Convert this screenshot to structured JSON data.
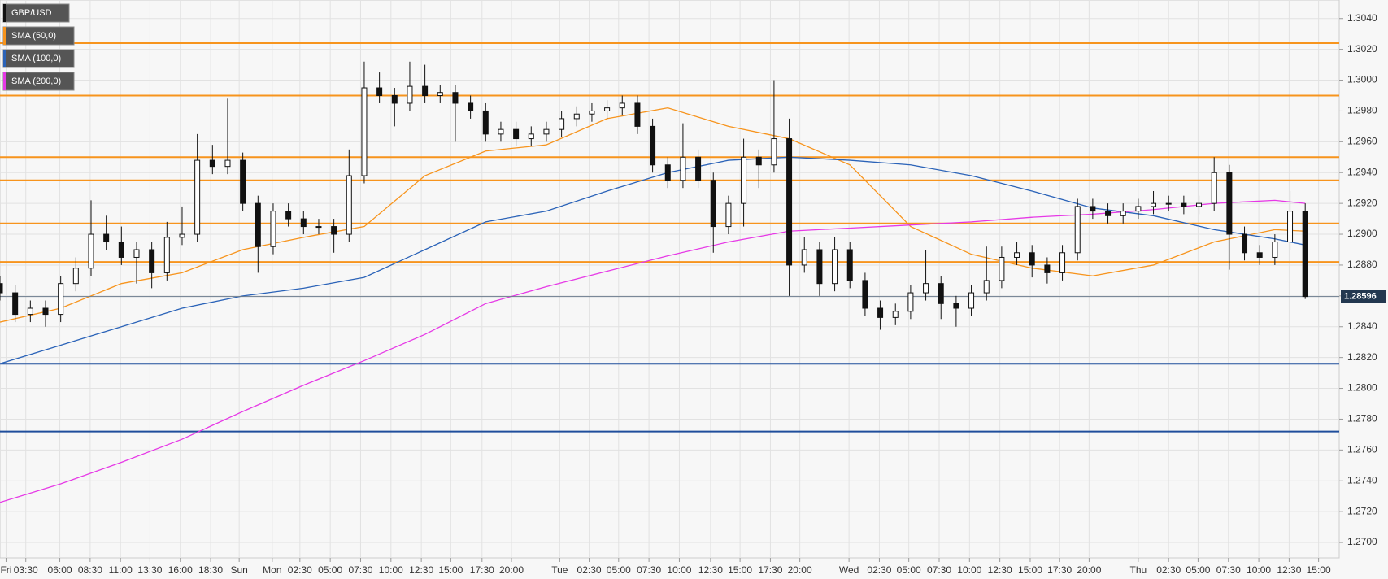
{
  "chart_data": {
    "type": "candlestick",
    "legend": [
      {
        "name": "GBP/USD",
        "color": "#111111"
      },
      {
        "name": "SMA (50,0)",
        "color": "#f7941d"
      },
      {
        "name": "SMA (100,0)",
        "color": "#2b63b8"
      },
      {
        "name": "SMA (200,0)",
        "color": "#e639e6"
      }
    ],
    "xlim": [
      0,
      44.12
    ],
    "ylim": [
      1.269,
      1.3052
    ],
    "grid": true,
    "yticks": [
      {
        "value": 1.27,
        "label": "1.2700"
      },
      {
        "value": 1.272,
        "label": "1.2720"
      },
      {
        "value": 1.274,
        "label": "1.2740"
      },
      {
        "value": 1.276,
        "label": "1.2760"
      },
      {
        "value": 1.278,
        "label": "1.2780"
      },
      {
        "value": 1.28,
        "label": "1.2800"
      },
      {
        "value": 1.282,
        "label": "1.2820"
      },
      {
        "value": 1.284,
        "label": "1.2840"
      },
      {
        "value": 1.286,
        "label": "1.2860"
      },
      {
        "value": 1.288,
        "label": "1.2880"
      },
      {
        "value": 1.29,
        "label": "1.2900"
      },
      {
        "value": 1.292,
        "label": "1.2920"
      },
      {
        "value": 1.294,
        "label": "1.2940"
      },
      {
        "value": 1.296,
        "label": "1.2960"
      },
      {
        "value": 1.298,
        "label": "1.2980"
      },
      {
        "value": 1.3,
        "label": "1.3000"
      },
      {
        "value": 1.302,
        "label": "1.3020"
      },
      {
        "value": 1.304,
        "label": "1.3040"
      }
    ],
    "xticks": [
      {
        "value": 0.2,
        "label": "Fri"
      },
      {
        "value": 0.85,
        "label": "03:30"
      },
      {
        "value": 1.97,
        "label": "06:00"
      },
      {
        "value": 2.97,
        "label": "08:30"
      },
      {
        "value": 3.97,
        "label": "11:00"
      },
      {
        "value": 4.94,
        "label": "13:30"
      },
      {
        "value": 5.94,
        "label": "16:00"
      },
      {
        "value": 6.94,
        "label": "18:30"
      },
      {
        "value": 7.88,
        "label": "Sun"
      },
      {
        "value": 8.97,
        "label": "Mon"
      },
      {
        "value": 9.88,
        "label": "02:30"
      },
      {
        "value": 10.88,
        "label": "05:00"
      },
      {
        "value": 11.88,
        "label": "07:30"
      },
      {
        "value": 12.88,
        "label": "10:00"
      },
      {
        "value": 13.88,
        "label": "12:30"
      },
      {
        "value": 14.85,
        "label": "15:00"
      },
      {
        "value": 15.88,
        "label": "17:30"
      },
      {
        "value": 16.85,
        "label": "20:00"
      },
      {
        "value": 18.44,
        "label": "Tue"
      },
      {
        "value": 19.41,
        "label": "02:30"
      },
      {
        "value": 20.38,
        "label": "05:00"
      },
      {
        "value": 21.38,
        "label": "07:30"
      },
      {
        "value": 22.38,
        "label": "10:00"
      },
      {
        "value": 23.41,
        "label": "12:30"
      },
      {
        "value": 24.38,
        "label": "15:00"
      },
      {
        "value": 25.38,
        "label": "17:30"
      },
      {
        "value": 26.35,
        "label": "20:00"
      },
      {
        "value": 27.97,
        "label": "Wed"
      },
      {
        "value": 28.97,
        "label": "02:30"
      },
      {
        "value": 29.94,
        "label": "05:00"
      },
      {
        "value": 30.94,
        "label": "07:30"
      },
      {
        "value": 31.94,
        "label": "10:00"
      },
      {
        "value": 32.94,
        "label": "12:30"
      },
      {
        "value": 33.94,
        "label": "15:00"
      },
      {
        "value": 34.91,
        "label": "17:30"
      },
      {
        "value": 35.88,
        "label": "20:00"
      },
      {
        "value": 37.5,
        "label": "Thu"
      },
      {
        "value": 38.5,
        "label": "02:30"
      },
      {
        "value": 39.47,
        "label": "05:00"
      },
      {
        "value": 40.47,
        "label": "07:30"
      },
      {
        "value": 41.47,
        "label": "10:00"
      },
      {
        "value": 42.47,
        "label": "12:30"
      },
      {
        "value": 43.44,
        "label": "15:00"
      }
    ],
    "x": [
      0,
      0.5,
      1,
      1.5,
      2,
      2.5,
      3,
      3.5,
      4,
      4.5,
      5,
      5.5,
      6,
      6.5,
      7,
      7.5,
      8,
      8.5,
      9,
      9.5,
      10,
      10.5,
      11,
      11.5,
      12,
      12.5,
      13,
      13.5,
      14,
      14.5,
      15,
      15.5,
      16,
      16.5,
      17,
      17.5,
      18,
      18.5,
      19,
      19.5,
      20,
      20.5,
      21,
      21.5,
      22,
      22.5,
      23,
      23.5,
      24,
      24.5,
      25,
      25.5,
      26,
      26.5,
      27,
      27.5,
      28,
      28.5,
      29,
      29.5,
      30,
      30.5,
      31,
      31.5,
      32,
      32.5,
      33,
      33.5,
      34,
      34.5,
      35,
      35.5,
      36,
      36.5,
      37,
      37.5,
      38,
      38.5,
      39,
      39.5,
      40,
      40.5,
      41,
      41.5,
      42,
      42.5,
      43
    ],
    "open": [
      1.2868,
      1.2862,
      1.2848,
      1.2852,
      1.2848,
      1.2868,
      1.2878,
      1.29,
      1.2895,
      1.2885,
      1.289,
      1.2875,
      1.2898,
      1.29,
      1.2948,
      1.2944,
      1.2948,
      1.292,
      1.2892,
      1.2915,
      1.291,
      1.2905,
      1.2905,
      1.29,
      1.2938,
      1.2995,
      1.299,
      1.2985,
      1.2996,
      1.299,
      1.2992,
      1.2985,
      1.298,
      1.2965,
      1.2968,
      1.2962,
      1.2965,
      1.2968,
      1.2975,
      1.2978,
      1.298,
      1.2982,
      1.2985,
      1.297,
      1.2945,
      1.2935,
      1.295,
      1.2935,
      1.2905,
      1.292,
      1.295,
      1.2945,
      1.2962,
      1.288,
      1.289,
      1.2868,
      1.289,
      1.287,
      1.2852,
      1.2846,
      1.285,
      1.2862,
      1.2868,
      1.2855,
      1.2852,
      1.2862,
      1.287,
      1.2885,
      1.2888,
      1.288,
      1.2875,
      1.2888,
      1.2918,
      1.2915,
      1.2912,
      1.2915,
      1.2918,
      1.292,
      1.292,
      1.2918,
      1.292,
      1.294,
      1.29,
      1.2888,
      1.2885,
      1.2895,
      1.2915
    ],
    "high": [
      1.2873,
      1.2867,
      1.2857,
      1.2857,
      1.2873,
      1.2885,
      1.2922,
      1.2912,
      1.2905,
      1.2895,
      1.2895,
      1.2908,
      1.2918,
      1.2965,
      1.2958,
      1.2988,
      1.2953,
      1.2925,
      1.292,
      1.292,
      1.2915,
      1.291,
      1.291,
      1.2955,
      1.3012,
      1.3005,
      1.2995,
      1.3012,
      1.301,
      1.2997,
      1.2997,
      1.299,
      1.2985,
      1.2973,
      1.2973,
      1.297,
      1.2973,
      1.298,
      1.2983,
      1.2985,
      1.2987,
      1.299,
      1.299,
      1.2975,
      1.295,
      1.2972,
      1.2955,
      1.294,
      1.2925,
      1.2962,
      1.2955,
      1.3,
      1.2975,
      1.2898,
      1.2895,
      1.2898,
      1.2895,
      1.2875,
      1.2857,
      1.2855,
      1.2867,
      1.289,
      1.2873,
      1.286,
      1.2867,
      1.2892,
      1.2892,
      1.2895,
      1.2893,
      1.2885,
      1.2893,
      1.2923,
      1.2923,
      1.292,
      1.292,
      1.2923,
      1.2928,
      1.2925,
      1.2925,
      1.2925,
      1.295,
      1.2945,
      1.2905,
      1.2893,
      1.29,
      1.2928,
      1.292
    ],
    "low": [
      1.2857,
      1.2843,
      1.2843,
      1.284,
      1.2843,
      1.2863,
      1.2873,
      1.289,
      1.288,
      1.2868,
      1.2865,
      1.287,
      1.2893,
      1.2895,
      1.2939,
      1.2939,
      1.2915,
      1.2875,
      1.2887,
      1.2905,
      1.29,
      1.29,
      1.2888,
      1.2895,
      1.2933,
      1.2985,
      1.297,
      1.298,
      1.2985,
      1.2985,
      1.296,
      1.2975,
      1.296,
      1.296,
      1.2957,
      1.2957,
      1.296,
      1.2963,
      1.297,
      1.2973,
      1.2975,
      1.2977,
      1.2965,
      1.294,
      1.293,
      1.293,
      1.293,
      1.2888,
      1.29,
      1.2905,
      1.293,
      1.294,
      1.286,
      1.2875,
      1.286,
      1.2863,
      1.2865,
      1.2847,
      1.2838,
      1.2841,
      1.2845,
      1.2857,
      1.2845,
      1.284,
      1.2847,
      1.2857,
      1.2865,
      1.288,
      1.2872,
      1.2868,
      1.287,
      1.2883,
      1.291,
      1.2907,
      1.2907,
      1.291,
      1.2913,
      1.2915,
      1.2913,
      1.2913,
      1.2915,
      1.2877,
      1.2883,
      1.288,
      1.288,
      1.289,
      1.2858
    ],
    "close": [
      1.2862,
      1.2848,
      1.2852,
      1.2848,
      1.2868,
      1.2878,
      1.29,
      1.2895,
      1.2885,
      1.289,
      1.2875,
      1.2898,
      1.29,
      1.2948,
      1.2944,
      1.2948,
      1.292,
      1.2892,
      1.2915,
      1.291,
      1.2905,
      1.2905,
      1.29,
      1.2938,
      1.2995,
      1.299,
      1.2985,
      1.2996,
      1.299,
      1.2992,
      1.2985,
      1.298,
      1.2965,
      1.2968,
      1.2962,
      1.2965,
      1.2968,
      1.2975,
      1.2978,
      1.298,
      1.2982,
      1.2985,
      1.297,
      1.2945,
      1.2935,
      1.295,
      1.2935,
      1.2905,
      1.292,
      1.295,
      1.2945,
      1.2962,
      1.288,
      1.289,
      1.2868,
      1.289,
      1.287,
      1.2852,
      1.2846,
      1.285,
      1.2862,
      1.2868,
      1.2855,
      1.2852,
      1.2862,
      1.287,
      1.2885,
      1.2888,
      1.288,
      1.2875,
      1.2888,
      1.2918,
      1.2915,
      1.2912,
      1.2915,
      1.2918,
      1.292,
      1.292,
      1.2918,
      1.292,
      1.294,
      1.29,
      1.2888,
      1.2885,
      1.2895,
      1.2915,
      1.28596
    ],
    "sma_x": [
      0,
      2,
      4,
      6,
      8,
      10,
      12,
      14,
      16,
      18,
      20,
      22,
      24,
      26,
      28,
      30,
      32,
      34,
      36,
      38,
      40,
      42,
      43
    ],
    "sma": [
      {
        "color": "#f7941d",
        "values": [
          1.2843,
          1.2852,
          1.2868,
          1.2875,
          1.289,
          1.2898,
          1.2905,
          1.2938,
          1.2954,
          1.2958,
          1.2975,
          1.2982,
          1.297,
          1.2962,
          1.2945,
          1.2905,
          1.2887,
          1.2878,
          1.2873,
          1.288,
          1.2895,
          1.2903,
          1.2902
        ]
      },
      {
        "color": "#2b63b8",
        "values": [
          1.2816,
          1.2828,
          1.284,
          1.2852,
          1.286,
          1.2865,
          1.2872,
          1.289,
          1.2908,
          1.2915,
          1.2928,
          1.294,
          1.2948,
          1.295,
          1.2948,
          1.2945,
          1.2938,
          1.2928,
          1.2917,
          1.2912,
          1.2903,
          1.2897,
          1.2893
        ]
      },
      {
        "color": "#e639e6",
        "values": [
          1.2726,
          1.2738,
          1.2752,
          1.2767,
          1.2785,
          1.2802,
          1.2818,
          1.2835,
          1.2855,
          1.2866,
          1.2876,
          1.2886,
          1.2895,
          1.2902,
          1.2904,
          1.2906,
          1.2908,
          1.2911,
          1.2913,
          1.2916,
          1.292,
          1.2922,
          1.292
        ]
      }
    ],
    "levels": [
      {
        "value": 1.3024,
        "color": "#f7941d"
      },
      {
        "value": 1.299,
        "color": "#f7941d"
      },
      {
        "value": 1.295,
        "color": "#f7941d"
      },
      {
        "value": 1.2935,
        "color": "#f7941d"
      },
      {
        "value": 1.2907,
        "color": "#f7941d"
      },
      {
        "value": 1.2882,
        "color": "#f7941d"
      },
      {
        "value": 1.2816,
        "color": "#1f4e9c"
      },
      {
        "value": 1.2772,
        "color": "#1f4e9c"
      }
    ],
    "last_price": 1.28596
  }
}
